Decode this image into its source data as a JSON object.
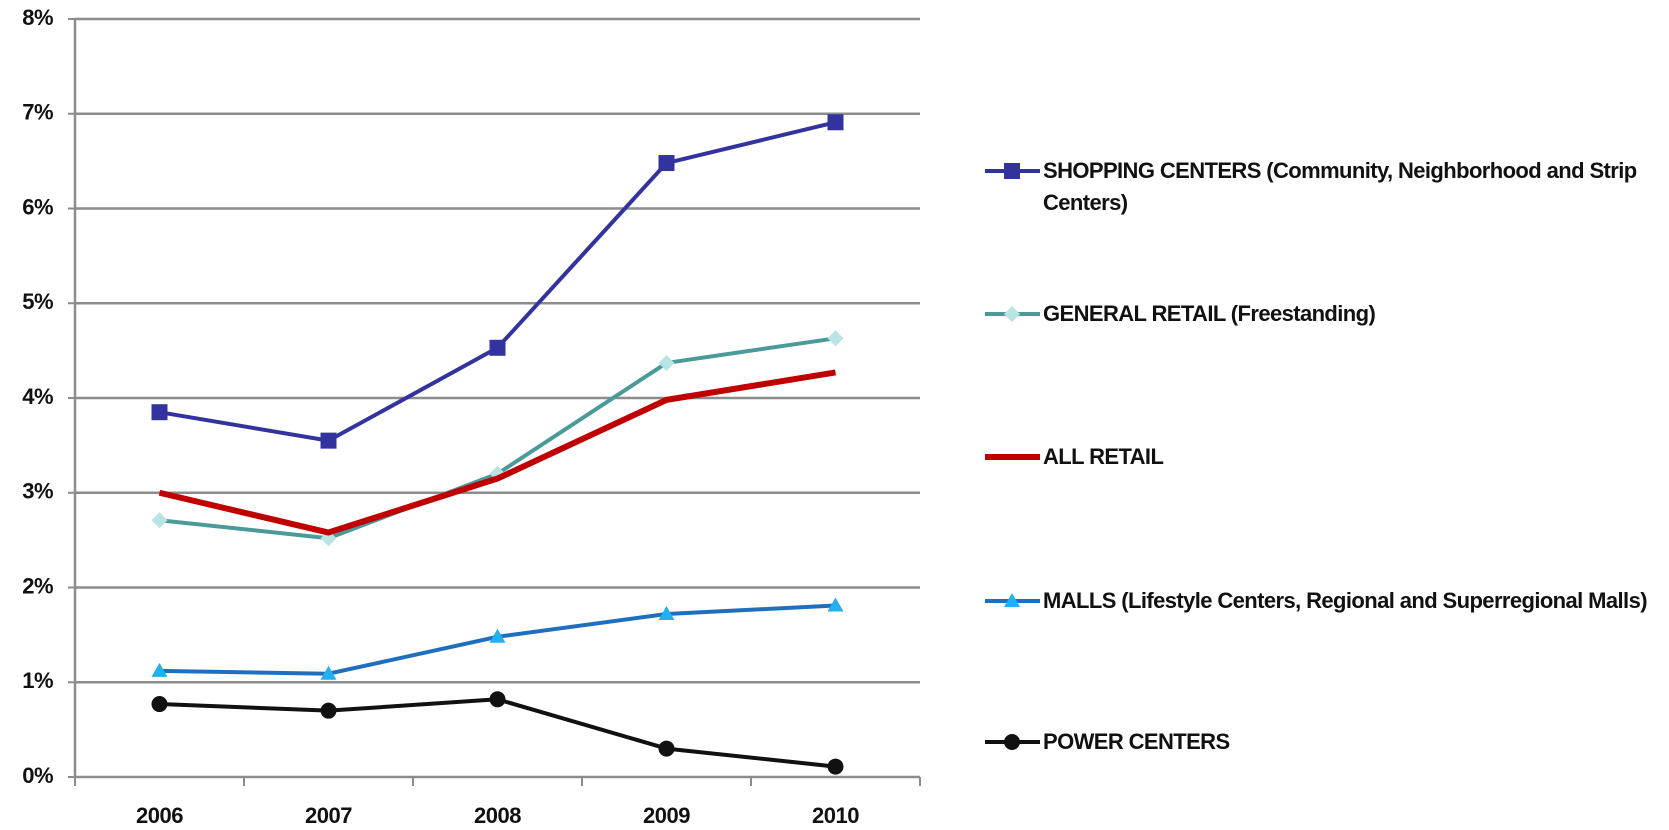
{
  "chart_data": {
    "type": "line",
    "categories": [
      "2006",
      "2007",
      "2008",
      "2009",
      "2010"
    ],
    "series": [
      {
        "name": "SHOPPING CENTERS (Community, Neighborhood and Strip Centers)",
        "color": "#3333a0",
        "marker": "square",
        "marker_color": "#3333a0",
        "values": [
          3.85,
          3.55,
          4.53,
          6.48,
          6.91
        ]
      },
      {
        "name": "GENERAL RETAIL (Freestanding)",
        "color": "#4a9a9a",
        "marker": "diamond",
        "marker_color": "#b8e4e4",
        "values": [
          2.71,
          2.52,
          3.2,
          4.37,
          4.63
        ]
      },
      {
        "name": "ALL RETAIL",
        "color": "#c00000",
        "marker": null,
        "marker_color": null,
        "values": [
          3.0,
          2.58,
          3.15,
          3.98,
          4.27
        ]
      },
      {
        "name": "MALLS (Lifestyle Centers, Regional and Superregional Malls)",
        "color": "#1f6fc0",
        "marker": "triangle",
        "marker_color": "#22b0f0",
        "values": [
          1.12,
          1.09,
          1.48,
          1.72,
          1.81
        ]
      },
      {
        "name": "POWER CENTERS",
        "color": "#111111",
        "marker": "circle",
        "marker_color": "#111111",
        "values": [
          0.77,
          0.7,
          0.82,
          0.3,
          0.11
        ]
      }
    ],
    "ylim": [
      0,
      8
    ],
    "yticks": [
      {
        "value": 0,
        "label": "0%"
      },
      {
        "value": 1,
        "label": "1%"
      },
      {
        "value": 2,
        "label": "2%"
      },
      {
        "value": 3,
        "label": "3%"
      },
      {
        "value": 4,
        "label": "4%"
      },
      {
        "value": 5,
        "label": "5%"
      },
      {
        "value": 6,
        "label": "6%"
      },
      {
        "value": 7,
        "label": "7%"
      },
      {
        "value": 8,
        "label": "8%"
      }
    ],
    "grid": true,
    "legend": "right"
  }
}
